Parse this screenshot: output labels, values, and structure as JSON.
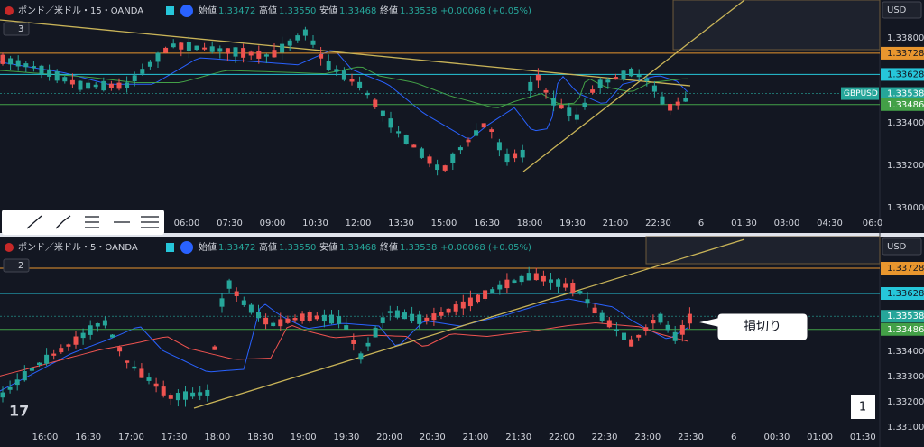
{
  "top_panel": {
    "symbol": "ポンド／米ドル・15・OANDA",
    "open_label": "始値",
    "open": "1.33472",
    "high_label": "高値",
    "high": "1.33550",
    "low_label": "安値",
    "low": "1.33468",
    "close_label": "終値",
    "close": "1.33538",
    "change": "+0.00068 (+0.05%)",
    "indicator_count": "3",
    "currency": "USD",
    "price_axis": [
      "1.33800",
      "1.33400",
      "1.33200",
      "1.33000"
    ],
    "price_tags": [
      {
        "label": "1.33728",
        "color": "#e8962e",
        "text_color": "#131722"
      },
      {
        "label": "1.33628",
        "color": "#26c6da",
        "text_color": "#131722"
      },
      {
        "label": "1.33538",
        "color": "#26a69a",
        "text_color": "#ffffff"
      },
      {
        "label": "1.33486",
        "color": "#43a047",
        "text_color": "#ffffff"
      }
    ],
    "symbol_tag": "GBPUSD",
    "time_axis": [
      "06:00",
      "07:30",
      "09:00",
      "10:30",
      "12:00",
      "13:30",
      "15:00",
      "16:30",
      "18:00",
      "19:30",
      "21:00",
      "22:30",
      "6",
      "01:30",
      "03:00",
      "04:30",
      "06:0"
    ]
  },
  "bottom_panel": {
    "symbol": "ポンド／米ドル・5・OANDA",
    "open_label": "始値",
    "open": "1.33472",
    "high_label": "高値",
    "high": "1.33550",
    "low_label": "安値",
    "low": "1.33468",
    "close_label": "終値",
    "close": "1.33538",
    "change": "+0.00068 (+0.05%)",
    "indicator_count": "2",
    "currency": "USD",
    "price_axis": [
      "1.33400",
      "1.33300",
      "1.33200",
      "1.33100"
    ],
    "price_tags": [
      {
        "label": "1.33728",
        "color": "#e8962e",
        "text_color": "#131722"
      },
      {
        "label": "1.33628",
        "color": "#26c6da",
        "text_color": "#131722"
      },
      {
        "label": "1.33538",
        "color": "#26a69a",
        "text_color": "#ffffff"
      },
      {
        "label": "1.33486",
        "color": "#43a047",
        "text_color": "#ffffff"
      }
    ],
    "time_axis": [
      "16:00",
      "16:30",
      "17:00",
      "17:30",
      "18:00",
      "18:30",
      "19:00",
      "19:30",
      "20:00",
      "20:30",
      "21:00",
      "21:30",
      "22:00",
      "22:30",
      "23:00",
      "23:30",
      "6",
      "00:30",
      "01:00",
      "01:30"
    ],
    "callout": "損切り",
    "pane_number": "1"
  }
}
